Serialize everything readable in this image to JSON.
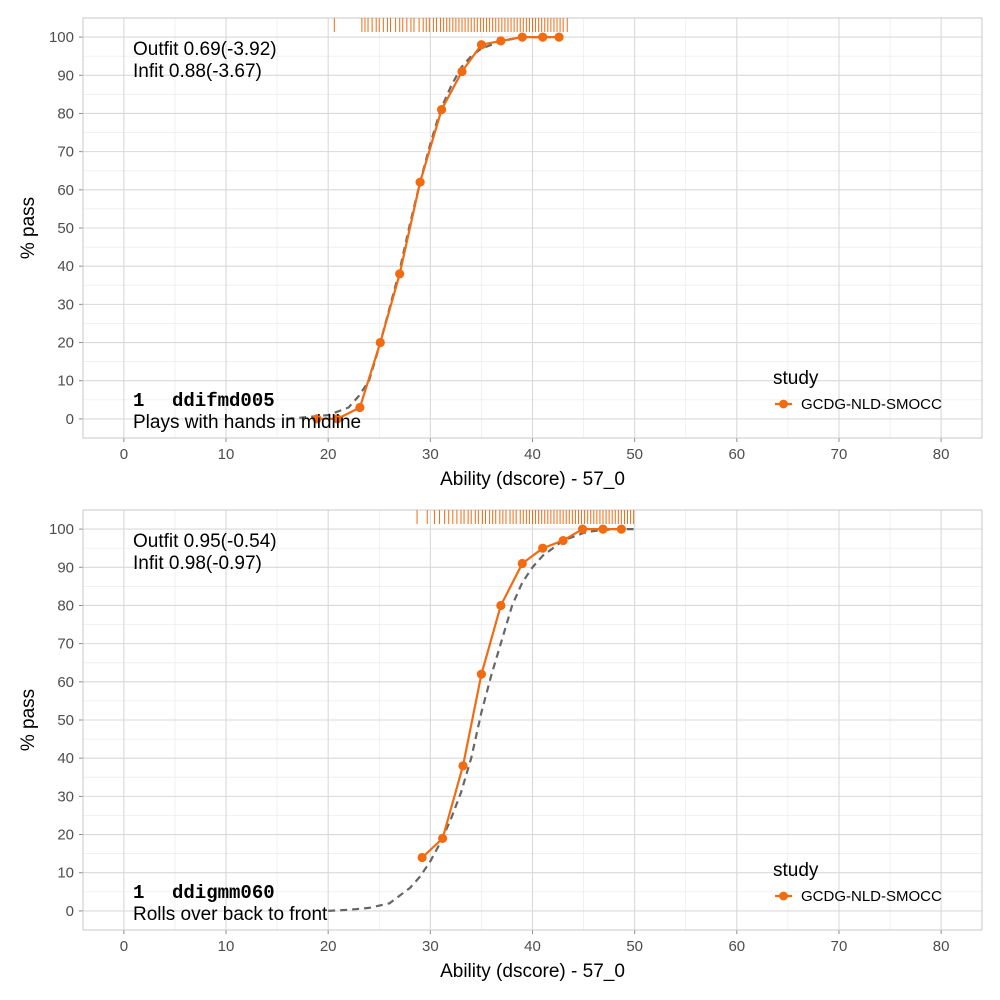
{
  "chart_data": [
    {
      "type": "line",
      "xlabel": "Ability (dscore) - 57_0",
      "ylabel": "% pass",
      "xlim": [
        -4,
        84
      ],
      "ylim": [
        -5,
        105
      ],
      "xticks": [
        0,
        10,
        20,
        30,
        40,
        50,
        60,
        70,
        80
      ],
      "yticks": [
        0,
        10,
        20,
        30,
        40,
        50,
        60,
        70,
        80,
        90,
        100
      ],
      "grid": true,
      "fit_lines": [
        "Outfit 0.69(-3.92)",
        "Infit  0.88(-3.67)"
      ],
      "item": {
        "number": "1",
        "code": "ddifmd005",
        "label": "Plays with hands in midline"
      },
      "legend": {
        "title": "study",
        "position": "right",
        "entries": [
          {
            "label": "GCDG-NLD-SMOCC",
            "color": "#f26b10"
          }
        ]
      },
      "series": [
        {
          "name": "GCDG-NLD-SMOCC",
          "color": "#f26b10",
          "x": [
            18.9,
            20.9,
            23.1,
            25.1,
            27.0,
            29.0,
            31.1,
            33.1,
            35.0,
            36.9,
            39.0,
            41.0,
            42.6
          ],
          "y": [
            0,
            0,
            3,
            20,
            38,
            62,
            81,
            91,
            98,
            99,
            100,
            100,
            100
          ]
        }
      ],
      "model_curve": {
        "color": "#666666",
        "x": [
          16,
          18,
          20,
          21,
          22,
          23,
          24,
          25,
          26,
          27,
          28,
          29,
          30,
          31,
          32,
          33,
          34,
          35,
          36,
          37,
          38,
          39,
          40,
          41,
          42,
          43
        ],
        "y": [
          0,
          0.5,
          1,
          2,
          3,
          6,
          10,
          19,
          29,
          39,
          51,
          62,
          72,
          81,
          87,
          92,
          95,
          97,
          98,
          99,
          99.5,
          100,
          100,
          100,
          100,
          100
        ]
      },
      "rug": {
        "color": "#f26b10",
        "values": [
          20.6,
          23.3,
          23.6,
          23.9,
          24.3,
          24.7,
          25.0,
          25.4,
          25.8,
          26.1,
          26.6,
          27.0,
          27.3,
          27.7,
          28.1,
          28.4,
          28.9,
          29.3,
          29.6,
          29.9,
          30.3,
          30.6,
          31.0,
          31.3,
          31.6,
          31.9,
          32.2,
          32.5,
          32.8,
          33.1,
          33.4,
          33.7,
          34.0,
          34.3,
          34.6,
          34.9,
          35.2,
          35.5,
          35.8,
          36.1,
          36.4,
          36.7,
          37.0,
          37.3,
          37.6,
          37.9,
          38.2,
          38.5,
          38.8,
          39.1,
          39.4,
          39.7,
          40.0,
          40.3,
          40.6,
          40.9,
          41.2,
          41.5,
          41.8,
          42.1,
          42.4,
          42.7,
          43.0,
          43.4
        ]
      }
    },
    {
      "type": "line",
      "xlabel": "Ability (dscore) - 57_0",
      "ylabel": "% pass",
      "xlim": [
        -4,
        84
      ],
      "ylim": [
        -5,
        105
      ],
      "xticks": [
        0,
        10,
        20,
        30,
        40,
        50,
        60,
        70,
        80
      ],
      "yticks": [
        0,
        10,
        20,
        30,
        40,
        50,
        60,
        70,
        80,
        90,
        100
      ],
      "grid": true,
      "fit_lines": [
        "Outfit 0.95(-0.54)",
        "Infit  0.98(-0.97)"
      ],
      "item": {
        "number": "1",
        "code": "ddigmm060",
        "label": "Rolls over back to front"
      },
      "legend": {
        "title": "study",
        "position": "right",
        "entries": [
          {
            "label": "GCDG-NLD-SMOCC",
            "color": "#f26b10"
          }
        ]
      },
      "series": [
        {
          "name": "GCDG-NLD-SMOCC",
          "color": "#f26b10",
          "x": [
            29.2,
            31.2,
            33.2,
            35.0,
            36.9,
            39.0,
            41.0,
            43.0,
            44.9,
            46.9,
            48.7
          ],
          "y": [
            14,
            19,
            38,
            62,
            80,
            91,
            95,
            97,
            100,
            100,
            100
          ]
        }
      ],
      "model_curve": {
        "color": "#666666",
        "x": [
          20,
          22,
          24,
          26,
          27,
          28,
          29,
          30,
          31,
          32,
          33,
          34,
          35,
          36,
          37,
          38,
          39,
          40,
          41,
          42,
          43,
          44,
          45,
          46,
          48,
          50
        ],
        "y": [
          0,
          0.3,
          0.8,
          2,
          4,
          6,
          9,
          13,
          18,
          24,
          31,
          40,
          52,
          62,
          71,
          80,
          86,
          90,
          93,
          95,
          97,
          98,
          99,
          99.5,
          100,
          100
        ]
      },
      "rug": {
        "color": "#f26b10",
        "values": [
          28.7,
          29.7,
          30.4,
          30.9,
          31.4,
          31.8,
          32.2,
          32.6,
          33.0,
          33.3,
          33.7,
          34.0,
          34.4,
          34.7,
          35.1,
          35.4,
          35.8,
          36.1,
          36.4,
          36.8,
          37.1,
          37.4,
          37.8,
          38.1,
          38.4,
          38.8,
          39.1,
          39.4,
          39.7,
          40.0,
          40.3,
          40.6,
          40.9,
          41.2,
          41.5,
          41.8,
          42.1,
          42.4,
          42.7,
          43.0,
          43.3,
          43.6,
          43.9,
          44.2,
          44.5,
          44.8,
          45.1,
          45.4,
          45.7,
          46.0,
          46.3,
          46.6,
          46.9,
          47.2,
          47.5,
          47.8,
          48.1,
          48.4,
          48.7,
          49.0,
          49.3,
          49.6,
          49.9
        ]
      }
    }
  ]
}
